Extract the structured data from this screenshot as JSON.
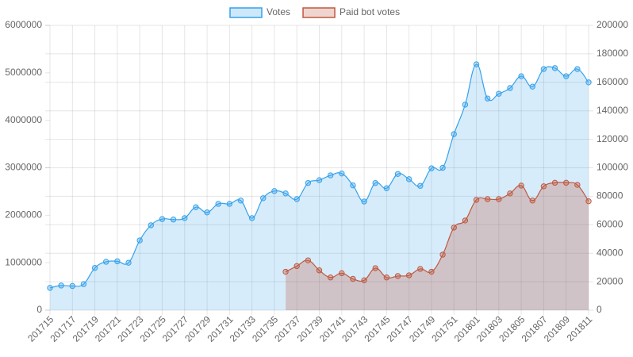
{
  "chart_data": {
    "type": "line",
    "categories": [
      "201715",
      null,
      "201717",
      null,
      "201719",
      null,
      "201721",
      null,
      "201723",
      null,
      "201725",
      null,
      "201727",
      null,
      "201729",
      null,
      "201731",
      null,
      "201733",
      null,
      "201735",
      null,
      "201737",
      null,
      "201739",
      null,
      "201741",
      null,
      "201743",
      null,
      "201745",
      null,
      "201747",
      null,
      "201749",
      null,
      "201751",
      null,
      "201801",
      null,
      "201803",
      null,
      "201805",
      null,
      "201807",
      null,
      "201809",
      null,
      "201811"
    ],
    "series": [
      {
        "name": "Votes",
        "color": "#36a2eb",
        "axis": "y",
        "fill": true,
        "values": [
          470000,
          520000,
          510000,
          550000,
          890000,
          1020000,
          1030000,
          1000000,
          1470000,
          1790000,
          1920000,
          1910000,
          1940000,
          2170000,
          2060000,
          2240000,
          2240000,
          2310000,
          1940000,
          2360000,
          2510000,
          2460000,
          2340000,
          2680000,
          2740000,
          2840000,
          2880000,
          2630000,
          2290000,
          2680000,
          2570000,
          2870000,
          2760000,
          2620000,
          2990000,
          3000000,
          3710000,
          4330000,
          5180000,
          4460000,
          4560000,
          4680000,
          4930000,
          4710000,
          5080000,
          5100000,
          4930000,
          5080000,
          4800000
        ]
      },
      {
        "name": "Paid bot votes",
        "color": "#c0583f",
        "axis": "y2",
        "fill": true,
        "values": [
          null,
          null,
          null,
          null,
          null,
          null,
          null,
          null,
          null,
          null,
          null,
          null,
          null,
          null,
          null,
          null,
          null,
          null,
          null,
          null,
          null,
          27000,
          31000,
          35000,
          28000,
          23000,
          26000,
          22000,
          21000,
          29500,
          23000,
          24000,
          24500,
          29000,
          27000,
          39000,
          58000,
          63000,
          77500,
          78000,
          78000,
          82000,
          87500,
          77000,
          87000,
          89500,
          89500,
          88000,
          76500
        ]
      }
    ],
    "ylim": [
      0,
      6000000
    ],
    "yticks": [
      0,
      1000000,
      2000000,
      3000000,
      4000000,
      5000000,
      6000000
    ],
    "y2lim": [
      0,
      200000
    ],
    "y2ticks": [
      0,
      20000,
      40000,
      60000,
      80000,
      100000,
      120000,
      140000,
      160000,
      180000,
      200000
    ],
    "grid": true,
    "legend": "top"
  }
}
